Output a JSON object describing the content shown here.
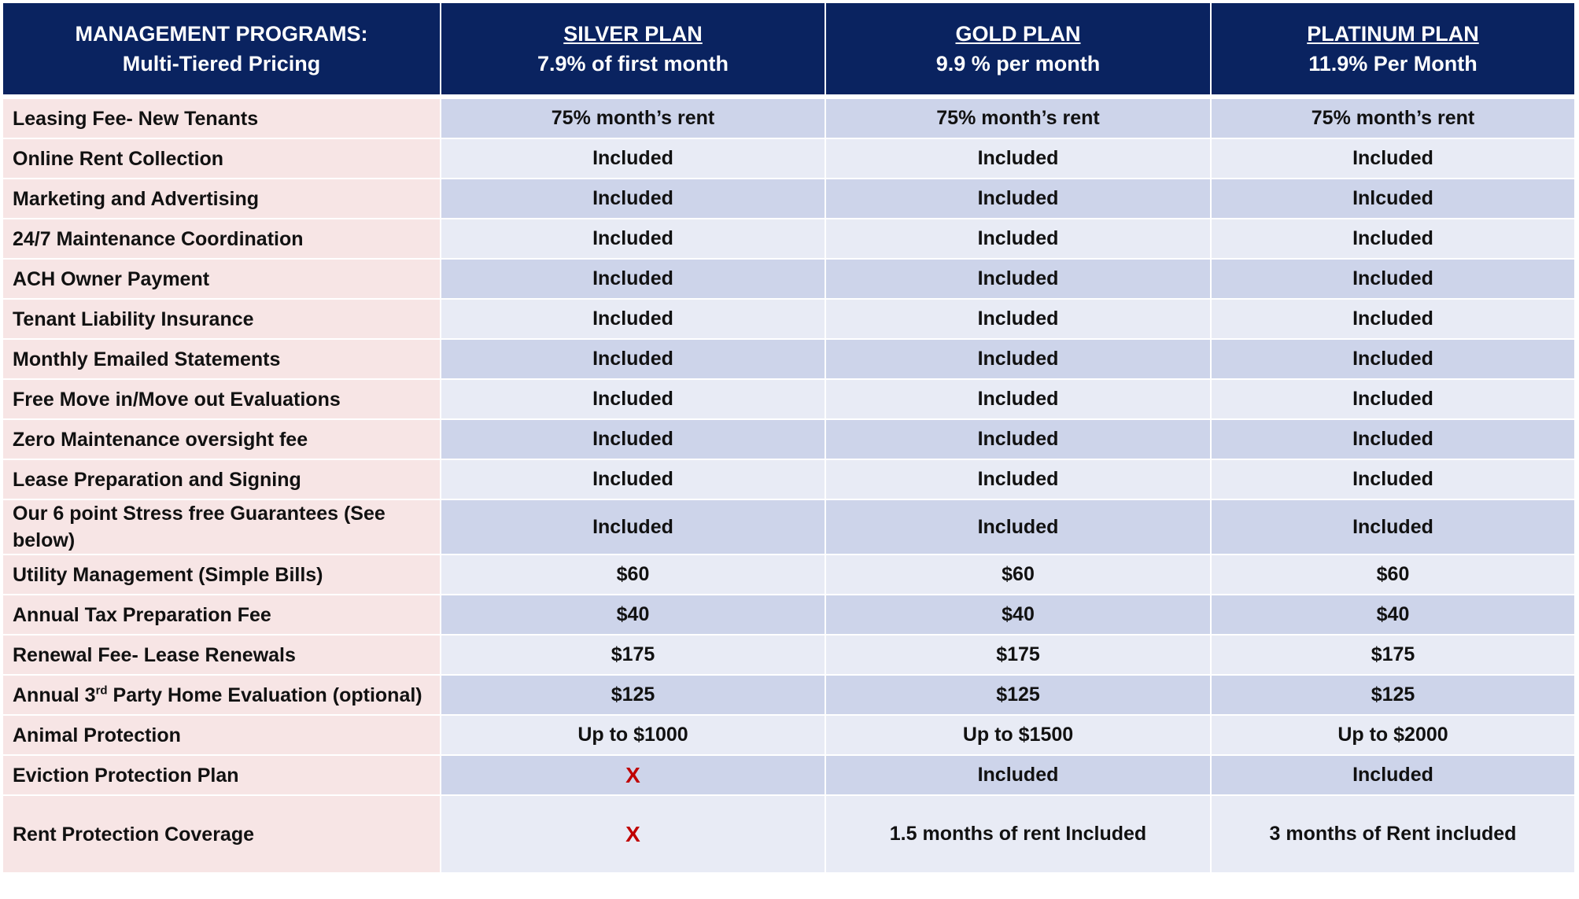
{
  "header": {
    "title_line1": "MANAGEMENT PROGRAMS:",
    "title_line2": "Multi-Tiered Pricing",
    "plans": [
      {
        "name": "SILVER PLAN",
        "rate": "7.9% of first month"
      },
      {
        "name": "GOLD PLAN",
        "rate": "9.9 % per month"
      },
      {
        "name": "PLATINUM PLAN",
        "rate": "11.9% Per Month"
      }
    ]
  },
  "rows": [
    {
      "feature": "Leasing Fee- New Tenants",
      "silver": "75% month’s rent",
      "gold": "75% month’s rent",
      "platinum": "75% month’s rent"
    },
    {
      "feature": "Online Rent Collection",
      "silver": "Included",
      "gold": "Included",
      "platinum": "Included"
    },
    {
      "feature": "Marketing and Advertising",
      "silver": "Included",
      "gold": "Included",
      "platinum": "Inlcuded"
    },
    {
      "feature": "24/7 Maintenance Coordination",
      "silver": "Included",
      "gold": "Included",
      "platinum": "Included"
    },
    {
      "feature": "ACH Owner Payment",
      "silver": "Included",
      "gold": "Included",
      "platinum": "Included"
    },
    {
      "feature": "Tenant Liability Insurance",
      "silver": "Included",
      "gold": "Included",
      "platinum": "Included"
    },
    {
      "feature": "Monthly Emailed Statements",
      "silver": "Included",
      "gold": "Included",
      "platinum": "Included"
    },
    {
      "feature": "Free Move in/Move out Evaluations",
      "silver": "Included",
      "gold": "Included",
      "platinum": "Included"
    },
    {
      "feature": "Zero Maintenance oversight fee",
      "silver": "Included",
      "gold": "Included",
      "platinum": "Included"
    },
    {
      "feature": "Lease Preparation and Signing",
      "silver": "Included",
      "gold": "Included",
      "platinum": "Included"
    },
    {
      "feature": "Our 6 point Stress free Guarantees (See below)",
      "silver": "Included",
      "gold": "Included",
      "platinum": "Included"
    },
    {
      "feature": "Utility Management (Simple Bills)",
      "silver": "$60",
      "gold": "$60",
      "platinum": "$60"
    },
    {
      "feature": "Annual Tax Preparation Fee",
      "silver": "$40",
      "gold": "$40",
      "platinum": "$40"
    },
    {
      "feature": "Renewal Fee- Lease Renewals",
      "silver": "$175",
      "gold": "$175",
      "platinum": "$175"
    },
    {
      "feature_pre": "Annual 3",
      "feature_sup": "rd",
      "feature_post": " Party Home Evaluation (optional)",
      "silver": "$125",
      "gold": "$125",
      "platinum": "$125"
    },
    {
      "feature": "Animal Protection",
      "silver": "Up to $1000",
      "gold": "Up to $1500",
      "platinum": "Up to $2000"
    },
    {
      "feature": "Eviction Protection Plan",
      "silver": "X",
      "gold": "Included",
      "platinum": "Included"
    },
    {
      "feature": "Rent Protection Coverage",
      "silver": "X",
      "gold": "1.5 months of rent Included",
      "platinum": "3 months of Rent included"
    }
  ],
  "colors": {
    "header_bg": "#0a2360",
    "feature_bg": "#f7e5e5",
    "row_alt_bg": "#cdd4ea",
    "row_bg": "#e8ebf5",
    "x_mark": "#c00000"
  }
}
